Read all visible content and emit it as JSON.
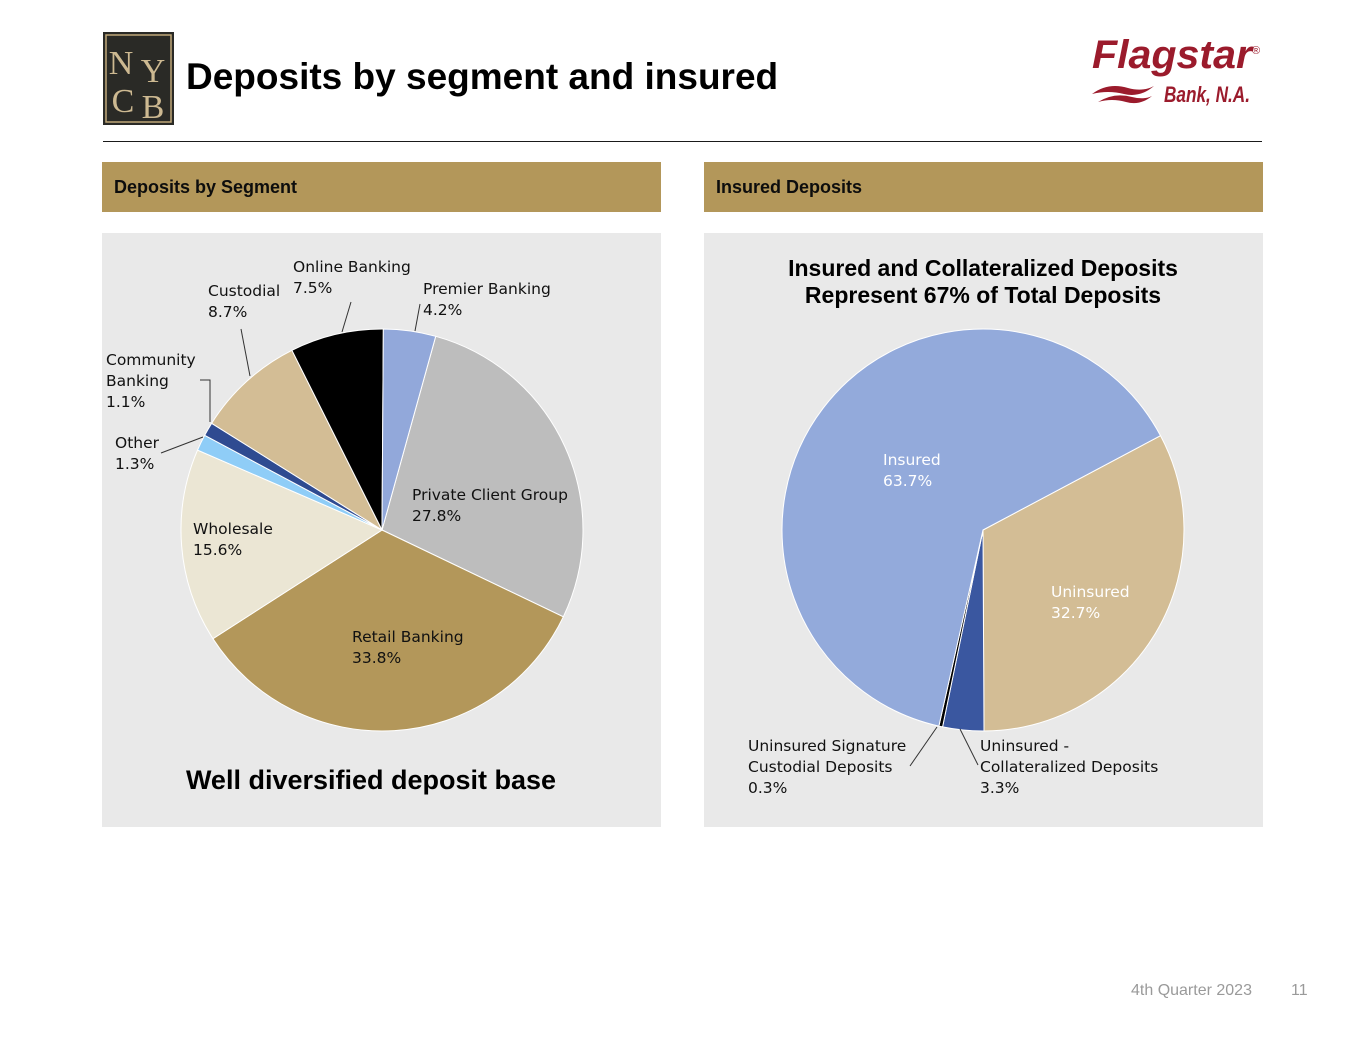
{
  "page": {
    "title": "Deposits by segment and insured",
    "footer_period": "4th Quarter 2023",
    "page_number": "11"
  },
  "logos": {
    "left_logo_letters": [
      "N",
      "Y",
      "C",
      "B"
    ],
    "right_logo_name": "Flagstar",
    "right_logo_sub": "Bank, N.A.",
    "right_logo_mark": "®"
  },
  "sections": {
    "segment_header": "Deposits by Segment",
    "insured_header": "Insured Deposits",
    "segment_caption": "Well diversified deposit base"
  },
  "chart_data": [
    {
      "type": "pie",
      "title": "",
      "slices": [
        {
          "name": "Private Client Group",
          "value": 27.8,
          "label": "27.8%",
          "color": "#bdbdbd"
        },
        {
          "name": "Retail Banking",
          "value": 33.8,
          "label": "33.8%",
          "color": "#b3975a"
        },
        {
          "name": "Wholesale",
          "value": 15.6,
          "label": "15.6%",
          "color": "#ebe6d4"
        },
        {
          "name": "Other",
          "value": 1.3,
          "label": "1.3%",
          "color": "#8fcdf7"
        },
        {
          "name": "Community Banking",
          "value": 1.1,
          "label": "1.1%",
          "color": "#2f4b91"
        },
        {
          "name": "Custodial",
          "value": 8.7,
          "label": "8.7%",
          "color": "#d3bd95"
        },
        {
          "name": "Online Banking",
          "value": 7.5,
          "label": "7.5%",
          "color": "#000000"
        },
        {
          "name": "Premier Banking",
          "value": 4.2,
          "label": "4.2%",
          "color": "#92a8da"
        }
      ]
    },
    {
      "type": "pie",
      "title": [
        "Insured and Collateralized Deposits",
        "Represent 67% of Total Deposits"
      ],
      "slices": [
        {
          "name": "Uninsured",
          "value": 32.7,
          "label": "32.7%",
          "color": "#d3bd95"
        },
        {
          "name": "Uninsured - Collateralized Deposits",
          "value": 3.3,
          "label": "3.3%",
          "color": "#3a57a0"
        },
        {
          "name": "Uninsured Signature Custodial Deposits",
          "value": 0.3,
          "label": "0.3%",
          "color": "#000000"
        },
        {
          "name": "Insured",
          "value": 63.7,
          "label": "63.7%",
          "color": "#93aadb"
        }
      ]
    }
  ]
}
